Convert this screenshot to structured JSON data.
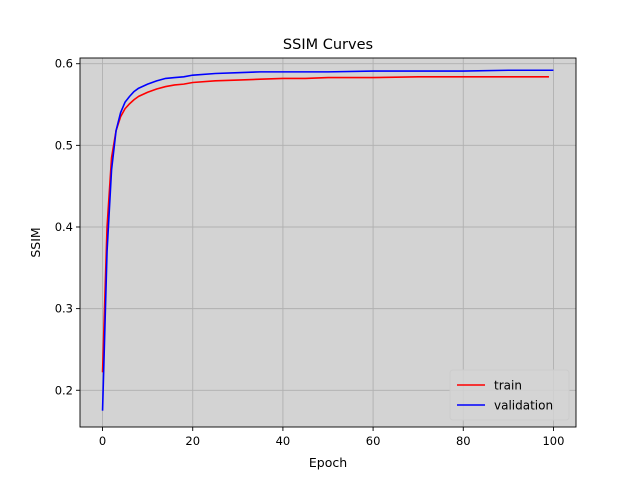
{
  "chart_data": {
    "type": "line",
    "title": "SSIM Curves",
    "xlabel": "Epoch",
    "ylabel": "SSIM",
    "xlim": [
      -5,
      105
    ],
    "ylim": [
      0.155,
      0.607
    ],
    "xticks": [
      0,
      20,
      40,
      60,
      80,
      100
    ],
    "yticks": [
      0.2,
      0.3,
      0.4,
      0.5,
      0.6
    ],
    "xtick_labels": [
      "0",
      "20",
      "40",
      "60",
      "80",
      "100"
    ],
    "ytick_labels": [
      "0.2",
      "0.3",
      "0.4",
      "0.5",
      "0.6"
    ],
    "grid": true,
    "legend_position": "bottom-right",
    "background_color": "#d3d3d3",
    "series": [
      {
        "name": "train",
        "color": "#ff0000",
        "x": [
          0,
          1,
          2,
          3,
          4,
          5,
          6,
          7,
          8,
          10,
          12,
          14,
          16,
          18,
          20,
          25,
          30,
          35,
          40,
          45,
          50,
          60,
          70,
          80,
          90,
          99
        ],
        "y": [
          0.222,
          0.4,
          0.485,
          0.518,
          0.535,
          0.545,
          0.551,
          0.556,
          0.56,
          0.565,
          0.569,
          0.572,
          0.574,
          0.575,
          0.577,
          0.579,
          0.58,
          0.581,
          0.582,
          0.582,
          0.583,
          0.583,
          0.584,
          0.584,
          0.584,
          0.584
        ]
      },
      {
        "name": "validation",
        "color": "#0000ff",
        "x": [
          0,
          1,
          2,
          3,
          4,
          5,
          6,
          7,
          8,
          10,
          12,
          14,
          16,
          18,
          20,
          25,
          30,
          35,
          40,
          45,
          50,
          60,
          70,
          80,
          90,
          100
        ],
        "y": [
          0.175,
          0.37,
          0.47,
          0.518,
          0.54,
          0.553,
          0.56,
          0.566,
          0.57,
          0.575,
          0.579,
          0.582,
          0.583,
          0.584,
          0.586,
          0.588,
          0.589,
          0.59,
          0.59,
          0.59,
          0.59,
          0.591,
          0.591,
          0.591,
          0.592,
          0.592
        ]
      }
    ]
  }
}
